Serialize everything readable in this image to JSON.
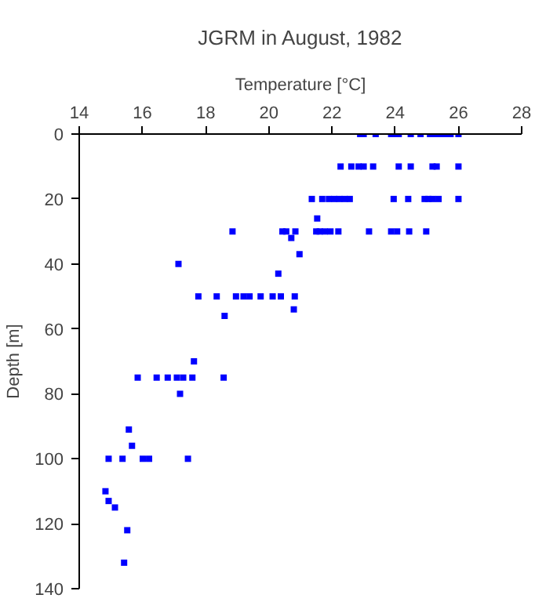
{
  "chart_data": {
    "type": "scatter",
    "title": "JGRM in August, 1982",
    "xlabel": "Temperature [°C]",
    "ylabel": "Depth [m]",
    "xlim": [
      14,
      28
    ],
    "xticks": [
      14,
      16,
      18,
      20,
      22,
      24,
      26,
      28
    ],
    "ylim": [
      140,
      0
    ],
    "yticks": [
      0,
      20,
      40,
      60,
      80,
      100,
      120,
      140
    ],
    "grid": false,
    "marker": "square",
    "series": [
      {
        "color": "#0000ff",
        "x": [
          22.89,
          23.0,
          23.38,
          23.87,
          23.99,
          24.11,
          24.49,
          24.8,
          25.1,
          25.26,
          25.42,
          25.59,
          25.75,
          26.0,
          22.27,
          22.61,
          22.84,
          23.0,
          23.3,
          24.11,
          24.49,
          25.18,
          25.31,
          26.0,
          21.36,
          21.69,
          21.9,
          22.07,
          22.23,
          22.4,
          22.56,
          23.95,
          24.41,
          24.93,
          25.05,
          25.18,
          25.37,
          26.0,
          21.53,
          18.85,
          20.43,
          20.55,
          20.84,
          21.5,
          21.61,
          21.77,
          21.95,
          22.2,
          23.17,
          23.87,
          24.06,
          24.44,
          24.98,
          20.71,
          20.97,
          17.14,
          20.3,
          17.77,
          18.35,
          18.96,
          19.2,
          19.39,
          19.74,
          20.12,
          20.38,
          20.82,
          20.79,
          18.6,
          17.63,
          15.85,
          16.45,
          16.8,
          17.09,
          17.29,
          17.58,
          18.57,
          17.19,
          15.57,
          15.67,
          14.93,
          15.37,
          16.01,
          16.21,
          17.44,
          14.83,
          14.93,
          15.13,
          15.52,
          15.42
        ],
        "values": [
          0,
          0,
          0,
          0,
          0,
          0,
          0,
          0,
          0,
          0,
          0,
          0,
          0,
          0,
          10,
          10,
          10,
          10,
          10,
          10,
          10,
          10,
          10,
          10,
          20,
          20,
          20,
          20,
          20,
          20,
          20,
          20,
          20,
          20,
          20,
          20,
          20,
          20,
          26,
          30,
          30,
          30,
          30,
          30,
          30,
          30,
          30,
          30,
          30,
          30,
          30,
          30,
          30,
          32,
          37,
          40,
          43,
          50,
          50,
          50,
          50,
          50,
          50,
          50,
          50,
          50,
          54,
          56,
          70,
          75,
          75,
          75,
          75,
          75,
          75,
          75,
          80,
          91,
          96,
          100,
          100,
          100,
          100,
          100,
          110,
          113,
          115,
          122,
          132
        ]
      }
    ]
  }
}
